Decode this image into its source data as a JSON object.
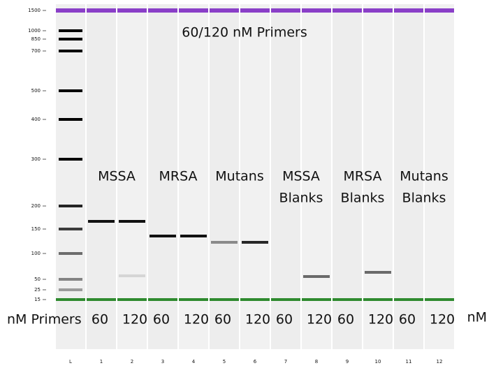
{
  "header": {
    "title": "60/120 nM Primers"
  },
  "size_labels": [
    "1500",
    "1000",
    "850",
    "700",
    "500",
    "400",
    "300",
    "200",
    "150",
    "100",
    "50",
    "25",
    "15"
  ],
  "groups": [
    {
      "lines": [
        "MSSA"
      ]
    },
    {
      "lines": [
        "MRSA"
      ]
    },
    {
      "lines": [
        "Mutans"
      ]
    },
    {
      "lines": [
        "MSSA",
        "Blanks"
      ]
    },
    {
      "lines": [
        "MRSA",
        "Blanks"
      ]
    },
    {
      "lines": [
        "Mutans",
        "Blanks"
      ]
    }
  ],
  "concentration_label": "nM Primers",
  "concentrations": [
    "60",
    "120",
    "60",
    "120",
    "60",
    "120",
    "60",
    "120",
    "60",
    "120",
    "60",
    "120"
  ],
  "unit": "nM",
  "lanes": [
    "L",
    "1",
    "2",
    "3",
    "4",
    "5",
    "6",
    "7",
    "8",
    "9",
    "10",
    "11",
    "12"
  ]
}
